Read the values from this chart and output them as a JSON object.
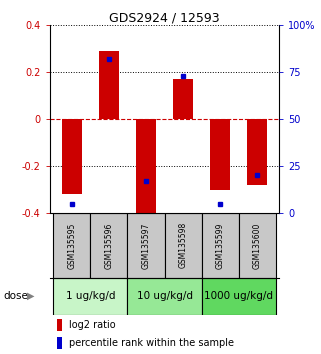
{
  "title": "GDS2924 / 12593",
  "samples": [
    "GSM135595",
    "GSM135596",
    "GSM135597",
    "GSM135598",
    "GSM135599",
    "GSM135600"
  ],
  "log2_ratios": [
    -0.32,
    0.29,
    -0.4,
    0.17,
    -0.3,
    -0.28
  ],
  "percentile_ranks": [
    5,
    82,
    17,
    73,
    5,
    20
  ],
  "ylim": [
    -0.4,
    0.4
  ],
  "yticks_left": [
    -0.4,
    -0.2,
    0.0,
    0.2,
    0.4
  ],
  "yticks_right": [
    0,
    25,
    50,
    75,
    100
  ],
  "dose_groups": [
    {
      "label": "1 ug/kg/d",
      "start": 0,
      "end": 1,
      "color": "#c8f5c8"
    },
    {
      "label": "10 ug/kg/d",
      "start": 2,
      "end": 3,
      "color": "#96e896"
    },
    {
      "label": "1000 ug/kg/d",
      "start": 4,
      "end": 5,
      "color": "#60d860"
    }
  ],
  "bar_color": "#cc0000",
  "dot_color": "#0000cc",
  "zero_line_color": "#cc0000",
  "grid_color": "#000000",
  "sample_box_color": "#c8c8c8",
  "title_fontsize": 9,
  "tick_fontsize": 7,
  "sample_fontsize": 5.5,
  "legend_fontsize": 7,
  "dose_fontsize": 7.5
}
